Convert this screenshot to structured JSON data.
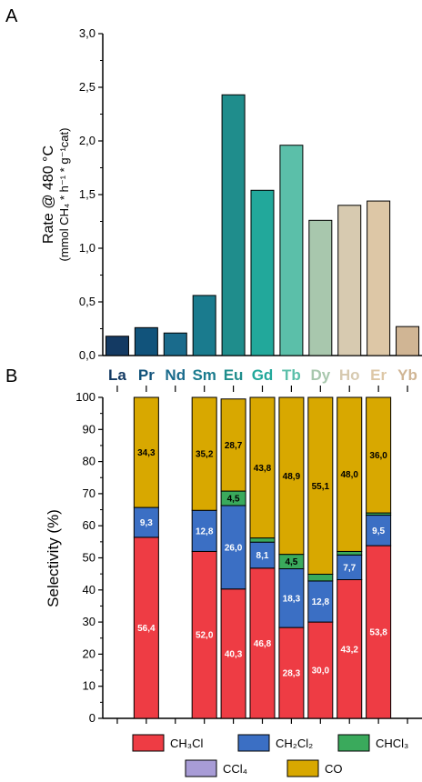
{
  "panel_a": {
    "label": "A"
  },
  "panel_b": {
    "label": "B"
  },
  "chart_data": [
    {
      "type": "bar",
      "ylabel_line1": "Rate @ 480 °C",
      "ylabel_line2": "(mmol CH₄ * h⁻¹ * g⁻¹cat)",
      "ylim": [
        0,
        3.0
      ],
      "yticks": [
        "0,0",
        "0,5",
        "1,0",
        "1,5",
        "2,0",
        "2,5",
        "3,0"
      ],
      "categories": [
        "La",
        "Pr",
        "Nd",
        "Sm",
        "Eu",
        "Gd",
        "Tb",
        "Dy",
        "Ho",
        "Er",
        "Yb"
      ],
      "values": [
        0.18,
        0.26,
        0.21,
        0.56,
        2.43,
        1.54,
        1.96,
        1.26,
        1.4,
        1.44,
        0.27
      ],
      "colors": [
        "#143a63",
        "#11537b",
        "#1a6b8c",
        "#1a7b8e",
        "#1f8d8c",
        "#22a89b",
        "#5bbfa9",
        "#a8c7ad",
        "#d7cab0",
        "#ddc7a6",
        "#d0b594"
      ],
      "label_colors": [
        "#143a63",
        "#11537b",
        "#1a6b8c",
        "#1a7b8e",
        "#1f8d8c",
        "#22a89b",
        "#5bbfa9",
        "#a8c7ad",
        "#d7cab0",
        "#ddc7a6",
        "#d0b594"
      ],
      "grid": false
    },
    {
      "type": "stacked_bar",
      "ylabel": "Selectivity (%)",
      "ylim": [
        0,
        100
      ],
      "yticks": [
        "0",
        "10",
        "20",
        "30",
        "40",
        "50",
        "60",
        "70",
        "80",
        "90",
        "100"
      ],
      "categories": [
        "La",
        "Pr",
        "Nd",
        "Sm",
        "Eu",
        "Gd",
        "Tb",
        "Dy",
        "Ho",
        "Er",
        "Yb"
      ],
      "legend_position": "bottom",
      "series": [
        {
          "name": "CH₃Cl",
          "color": "#ee3c44",
          "label_color": "#ffffff",
          "values": [
            null,
            56.4,
            null,
            52.0,
            40.3,
            46.8,
            28.3,
            30.0,
            43.2,
            53.8,
            null
          ],
          "labels": [
            null,
            "56,4",
            null,
            "52,0",
            "40,3",
            "46,8",
            "28,3",
            "30,0",
            "43,2",
            "53,8",
            null
          ]
        },
        {
          "name": "CH₂Cl₂",
          "color": "#3b6fc4",
          "label_color": "#ffffff",
          "values": [
            null,
            9.3,
            null,
            12.8,
            26.0,
            8.1,
            18.3,
            12.8,
            7.7,
            9.5,
            null
          ],
          "labels": [
            null,
            "9,3",
            null,
            "12,8",
            "26,0",
            "8,1",
            "18,3",
            "12,8",
            "7,7",
            "9,5",
            null
          ]
        },
        {
          "name": "CHCl₃",
          "color": "#3aaa5c",
          "label_color": "#000000",
          "values": [
            null,
            0.0,
            null,
            0.0,
            4.5,
            1.3,
            4.5,
            2.1,
            1.1,
            0.7,
            null
          ],
          "labels": [
            null,
            null,
            null,
            null,
            "4,5",
            null,
            "4,5",
            null,
            null,
            null,
            null
          ]
        },
        {
          "name": "CCl₄",
          "color": "#a89cd6",
          "label_color": "#000000",
          "values": [
            null,
            0.0,
            null,
            0.0,
            0.0,
            0.0,
            0.0,
            0.0,
            0.0,
            0.0,
            null
          ],
          "labels": [
            null,
            null,
            null,
            null,
            null,
            null,
            null,
            null,
            null,
            null,
            null
          ]
        },
        {
          "name": "CO",
          "color": "#d8a800",
          "label_color": "#000000",
          "values": [
            null,
            34.3,
            null,
            35.2,
            28.7,
            43.8,
            48.9,
            55.1,
            48.0,
            36.0,
            null
          ],
          "labels": [
            null,
            "34,3",
            null,
            "35,2",
            "28,7",
            "43,8",
            "48,9",
            "55,1",
            "48,0",
            "36,0",
            null
          ]
        }
      ],
      "legend_rows": [
        [
          "CH₃Cl",
          "CH₂Cl₂",
          "CHCl₃"
        ],
        [
          "CCl₄",
          "CO"
        ]
      ]
    }
  ]
}
